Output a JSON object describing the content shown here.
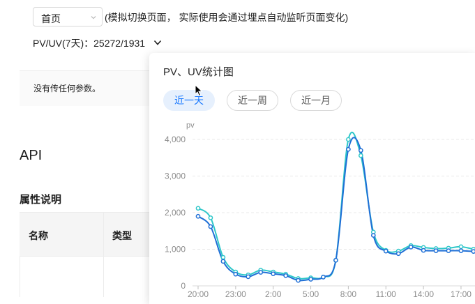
{
  "select": {
    "value": "首页"
  },
  "hint": "(模拟切换页面， 实际使用会通过埋点自动监听页面变化)",
  "pvuv": {
    "label": "PV/UV(7天)：25272/1931"
  },
  "params_text": "没有传任何参数。",
  "api_title": "API",
  "props_title": "属性说明",
  "table": {
    "headers": [
      "名称",
      "类型"
    ]
  },
  "popover": {
    "title": "PV、UV统计图",
    "tabs": [
      {
        "label": "近一天",
        "active": true
      },
      {
        "label": "近一周",
        "active": false
      },
      {
        "label": "近一月",
        "active": false
      }
    ]
  },
  "chart_data": {
    "type": "line",
    "ylabel": "pv",
    "ylim": [
      0,
      4000
    ],
    "yticks": [
      "0",
      "1,000",
      "2,000",
      "3,000",
      "4,000"
    ],
    "xticks": [
      {
        "label": "20:00",
        "i": 0
      },
      {
        "label": "23:00",
        "i": 3
      },
      {
        "label": "2:00",
        "i": 6
      },
      {
        "label": "5:00",
        "i": 9
      },
      {
        "label": "8:00",
        "i": 12
      },
      {
        "label": "11:00",
        "i": 15
      },
      {
        "label": "14:00",
        "i": 18
      },
      {
        "label": "17:00",
        "i": 21
      }
    ],
    "series": [
      {
        "color": "#2ec7c9",
        "values": [
          2120,
          1860,
          780,
          380,
          300,
          430,
          380,
          320,
          200,
          220,
          240,
          700,
          4000,
          3560,
          1470,
          970,
          950,
          1100,
          1050,
          1020,
          1030,
          1070,
          1000
        ]
      },
      {
        "color": "#1f6fd6",
        "values": [
          1900,
          1620,
          670,
          320,
          250,
          370,
          330,
          280,
          150,
          180,
          240,
          700,
          3730,
          3700,
          1380,
          950,
          880,
          1060,
          970,
          960,
          960,
          960,
          940
        ]
      }
    ]
  },
  "colors": {
    "accent": "#1677ff",
    "active_bg": "#e6f0fd",
    "series1": "#2ec7c9",
    "series2": "#1f6fd6"
  }
}
